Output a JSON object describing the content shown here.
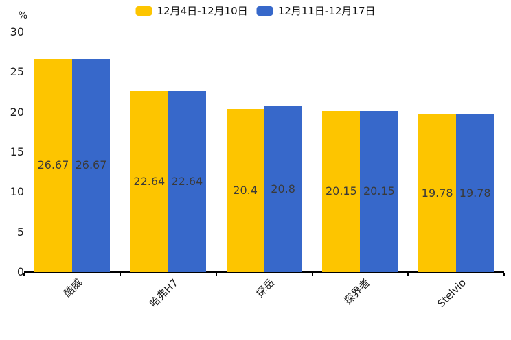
{
  "chart_data": {
    "type": "bar",
    "title": "",
    "unit_label": "%",
    "categories": [
      "酷威",
      "哈弗H7",
      "探岳",
      "探界者",
      "Stelvio"
    ],
    "series": [
      {
        "name": "12月4日-12月10日",
        "color": "#FDC500",
        "values": [
          26.67,
          22.64,
          20.4,
          20.15,
          19.78
        ]
      },
      {
        "name": "12月11日-12月17日",
        "color": "#3768CA",
        "values": [
          26.67,
          22.64,
          20.8,
          20.15,
          19.78
        ]
      }
    ],
    "ylim": [
      0,
      30
    ],
    "yticks": [
      0,
      5,
      10,
      15,
      20,
      25,
      30
    ],
    "xlabel": "",
    "ylabel": "%",
    "grid": false,
    "legend_position": "top-center",
    "value_labels": "inside-center",
    "x_label_rotation_deg": -45,
    "axis_color": "#000000",
    "text_color": "#1f1f1f",
    "value_label_color": "#3a3a3a"
  }
}
